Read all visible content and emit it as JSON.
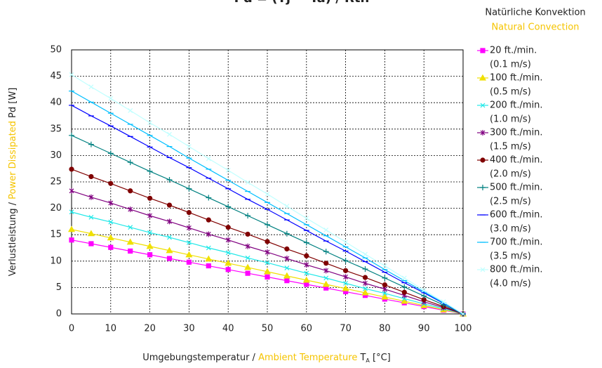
{
  "chart_data": {
    "type": "line",
    "title": "Pd = (Tj − Ta) / Rth",
    "legend_title": "Natürliche Konvektion",
    "legend_subtitle": "Natural Convection",
    "y_label": [
      "Verlustleistung / ",
      "Power Dissipated",
      " Pd [W]"
    ],
    "x_label": [
      "Umgebungstemperatur / ",
      "Ambient Temperature",
      " T",
      "A",
      " [°C]"
    ],
    "accent_color": "#f5c400",
    "grid": true,
    "xlim": [
      0,
      100
    ],
    "xticks": [
      0,
      10,
      20,
      30,
      40,
      50,
      60,
      70,
      80,
      90,
      100
    ],
    "ylim": [
      0,
      50
    ],
    "yticks": [
      0,
      5,
      10,
      15,
      20,
      25,
      30,
      35,
      40,
      45,
      50
    ],
    "x": [
      0,
      5,
      10,
      15,
      20,
      25,
      30,
      35,
      40,
      45,
      50,
      55,
      60,
      65,
      70,
      75,
      80,
      85,
      90,
      95,
      100
    ],
    "series": [
      {
        "name": "20 ft./min.",
        "speed": "(0.1 m/s)",
        "color": "#ff00ff",
        "marker": "square",
        "values": [
          14,
          13.3,
          12.6,
          11.9,
          11.2,
          10.5,
          9.8,
          9.1,
          8.4,
          7.7,
          7,
          6.3,
          5.6,
          4.9,
          4.2,
          3.5,
          2.8,
          2.1,
          1.4,
          0.7,
          0
        ]
      },
      {
        "name": "100 ft./min.",
        "speed": "(0.5 m/s)",
        "color": "#f0e000",
        "marker": "triangle",
        "values": [
          16,
          15.2,
          14.4,
          13.6,
          12.8,
          12,
          11.2,
          10.4,
          9.6,
          8.8,
          8,
          7.2,
          6.4,
          5.6,
          4.8,
          4,
          3.2,
          2.4,
          1.6,
          0.8,
          0
        ]
      },
      {
        "name": "200 ft./min.",
        "speed": "(1.0 m/s)",
        "color": "#20e8e8",
        "marker": "x",
        "values": [
          19.3,
          18.3,
          17.4,
          16.4,
          15.4,
          14.5,
          13.5,
          12.5,
          11.6,
          10.6,
          9.7,
          8.7,
          7.7,
          6.8,
          5.8,
          4.8,
          3.9,
          2.9,
          1.9,
          1,
          0
        ]
      },
      {
        "name": "300 ft./min.",
        "speed": "(1.5 m/s)",
        "color": "#800080",
        "marker": "star",
        "values": [
          23.3,
          22.1,
          21,
          19.8,
          18.6,
          17.5,
          16.3,
          15.1,
          14,
          12.8,
          11.7,
          10.5,
          9.3,
          8.2,
          7,
          5.8,
          4.7,
          3.5,
          2.3,
          1.2,
          0
        ]
      },
      {
        "name": "400 ft./min.",
        "speed": "(2.0 m/s)",
        "color": "#800000",
        "marker": "circle",
        "values": [
          27.4,
          26,
          24.7,
          23.3,
          21.9,
          20.6,
          19.2,
          17.8,
          16.4,
          15.1,
          13.7,
          12.3,
          11,
          9.6,
          8.2,
          6.9,
          5.5,
          4.1,
          2.7,
          1.4,
          0
        ]
      },
      {
        "name": "500 ft./min.",
        "speed": "(2.5 m/s)",
        "color": "#008080",
        "marker": "plus",
        "values": [
          33.8,
          32.1,
          30.4,
          28.7,
          27,
          25.4,
          23.7,
          22,
          20.3,
          18.6,
          16.9,
          15.2,
          13.5,
          11.8,
          10.1,
          8.5,
          6.8,
          5.1,
          3.4,
          1.7,
          0
        ]
      },
      {
        "name": "600 ft./min.",
        "speed": "(3.0 m/s)",
        "color": "#0000ff",
        "marker": "dash",
        "values": [
          39.5,
          37.5,
          35.6,
          33.6,
          31.6,
          29.6,
          27.7,
          25.7,
          23.7,
          21.7,
          19.8,
          17.8,
          15.8,
          13.8,
          11.9,
          9.9,
          7.9,
          5.9,
          4,
          2,
          0
        ]
      },
      {
        "name": "700 ft./min.",
        "speed": "(3.5 m/s)",
        "color": "#00bfff",
        "marker": "dash",
        "values": [
          42.2,
          40.1,
          38,
          35.9,
          33.8,
          31.7,
          29.5,
          27.4,
          25.3,
          23.2,
          21.1,
          19,
          16.9,
          14.8,
          12.7,
          10.6,
          8.4,
          6.3,
          4.2,
          2.1,
          0
        ]
      },
      {
        "name": "800 ft./min.",
        "speed": "(4.0 m/s)",
        "color": "#c0ffff",
        "marker": "x",
        "values": [
          45.3,
          43,
          40.8,
          38.5,
          36.2,
          34,
          31.7,
          29.4,
          27.2,
          24.9,
          22.7,
          20.4,
          18.1,
          15.9,
          13.6,
          11.3,
          9.1,
          6.8,
          4.5,
          2.3,
          0
        ]
      }
    ]
  }
}
